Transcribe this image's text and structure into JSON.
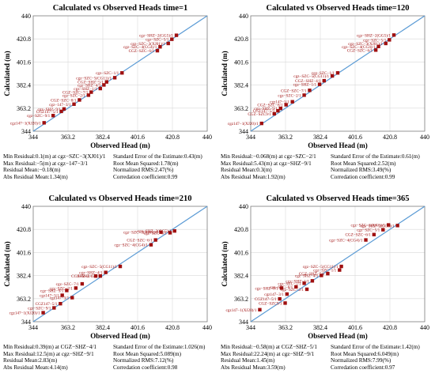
{
  "charts": [
    {
      "title": "Calculated vs Observed Heads   time=1",
      "xlabel": "Observed Head (m)",
      "ylabel": "Calculated (m)",
      "stats_left": [
        "Min Residual:0.1(m) at cgz−SZC−3(XJ01)/1",
        "Max Residual:−5(m) at cgz−147−3/1",
        "Residual Mean:−0.18(m)",
        "Abs Residual Mean:1.34(m)"
      ],
      "stats_right": [
        "Standard Error of the Estimate:0.43(m)",
        "Root Mean Squared:1.78(m)",
        "Normalized RMS:2.47(%)",
        "Corredation coefficient:0.99"
      ]
    },
    {
      "title": "Calculated vs Observed Heads   time=120",
      "xlabel": "Observed Head (m)",
      "ylabel": "Calculated (m)",
      "stats_left": [
        "Min Residual:−0.068(m) at cgz−SZC−2/1",
        "Max Residual:5.43(m) at cgz−SHZ−9/1",
        "Residual Mean:0.3(m)",
        "Abs Residual Mean:1.92(m)"
      ],
      "stats_right": [
        "Standard Error of the Estimate:0.61(m)",
        "Root Mean Squared:2.52(m)",
        "Normalized RMS:3.49(%)",
        "Corredation coefficient:0.99"
      ]
    },
    {
      "title": "Calculated vs Observed Heads   time=210",
      "xlabel": "Observed Head (m)",
      "ylabel": "Calculated (m)",
      "stats_left": [
        "Min Residual:0.39(m) at CGZ−SHZ−4/1",
        "Max Residual:12.5(m) at cgz−SHZ−9/1",
        "Residual Mean:2.83(m)",
        "Abs Residual Mean:4.14(m)"
      ],
      "stats_right": [
        "Standard Error of the Estimate:1.026(m)",
        "Root Mean Squared:5.089(m)",
        "Normalized RMS:7.12(%)",
        "Corredation coefficient:0.98"
      ]
    },
    {
      "title": "Calculated vs Observed Heads   time=365",
      "xlabel": "Observed Head (m)",
      "ylabel": "Calculated (m)",
      "stats_left": [
        "Min Residual:−0.58(m) at CGZ−SHZ−5/1",
        "Max Residual:22.24(m) at cgz−SHZ−9/1",
        "Residual Mean:1.45(m)",
        "Abs Residual Mean:3.59(m)"
      ],
      "stats_right": [
        "Standard Error of the Estimate:1.42(m)",
        "Root Mean Squared:6.049(m)",
        "Normalized RMS:7.99(%)",
        "Corredation coefficient:0.97"
      ]
    }
  ],
  "chart_data": [
    {
      "type": "scatter",
      "title": "Calculated vs Observed Heads   time=1",
      "xlabel": "Observed Head (m)",
      "ylabel": "Calculated (m)",
      "xlim": [
        344,
        440
      ],
      "ylim": [
        344,
        440
      ],
      "x_ticks": [
        344,
        363.2,
        382.4,
        401.6,
        420.8,
        440
      ],
      "y_ticks": [
        344,
        363.2,
        382.4,
        401.6,
        420.8,
        440
      ],
      "line_color": "#5b9bd5",
      "marker_color": "#a01010",
      "label_color": "#a01010",
      "grid": true,
      "reference_line": "y = x",
      "points": [
        {
          "x": 423.0,
          "y": 423.8,
          "label": "cgz−SHZ−2(GG5)/1"
        },
        {
          "x": 420.5,
          "y": 420.5,
          "label": "cgz−SZC−5/1"
        },
        {
          "x": 418.5,
          "y": 417.0,
          "label": "cgz−SZC−3(XJ01)/1"
        },
        {
          "x": 414.0,
          "y": 414.2,
          "label": "cgz−SZC−4(CG4)/1"
        },
        {
          "x": 412.5,
          "y": 411.0,
          "label": "CGZ−SZC−6/1"
        },
        {
          "x": 393.0,
          "y": 392.5,
          "label": "cgz−SZC−1/1"
        },
        {
          "x": 389.0,
          "y": 388.5,
          "label": "cgz−SZC−5(CG11)/1"
        },
        {
          "x": 384.5,
          "y": 385.0,
          "label": "CGZ−SHZ−5/1"
        },
        {
          "x": 383.0,
          "y": 382.5,
          "label": "cgz−SHZ−4/1"
        },
        {
          "x": 381.0,
          "y": 379.5,
          "label": "cgz−SHZ−1/1"
        },
        {
          "x": 376.0,
          "y": 376.5,
          "label": "CGZ−SZC−7/1"
        },
        {
          "x": 374.5,
          "y": 374.0,
          "label": "cgz−SZC−2/1"
        },
        {
          "x": 369.5,
          "y": 370.0,
          "label": "CGZ−SZC−8/1"
        },
        {
          "x": 366.5,
          "y": 366.5,
          "label": "cgz−147−3/1"
        },
        {
          "x": 361.0,
          "y": 362.5,
          "label": "cgz−SHZ−9/1"
        },
        {
          "x": 359.5,
          "y": 360.5,
          "label": "CGZ147−5/1"
        },
        {
          "x": 355.0,
          "y": 357.0,
          "label": "cgz−SZC−9/1"
        },
        {
          "x": 350.0,
          "y": 351.0,
          "label": "cgz147−1(XJ20)/1"
        }
      ]
    },
    {
      "type": "scatter",
      "title": "Calculated vs Observed Heads   time=120",
      "xlabel": "Observed Head (m)",
      "ylabel": "Calculated (m)",
      "xlim": [
        344,
        440
      ],
      "ylim": [
        344,
        440
      ],
      "x_ticks": [
        344,
        363.2,
        382.4,
        401.6,
        420.8,
        440
      ],
      "y_ticks": [
        344,
        363.2,
        382.4,
        401.6,
        420.8,
        440
      ],
      "line_color": "#5b9bd5",
      "marker_color": "#a01010",
      "label_color": "#a01010",
      "grid": true,
      "reference_line": "y = x",
      "points": [
        {
          "x": 423.0,
          "y": 424.0,
          "label": "cgz−SHZ−2(GG5)/1"
        },
        {
          "x": 420.5,
          "y": 420.0,
          "label": "cgz−SZC−5/1"
        },
        {
          "x": 418.5,
          "y": 417.0,
          "label": "cgz−SZC−3(XJ01)/1"
        },
        {
          "x": 414.5,
          "y": 414.5,
          "label": "cgz−SZC−4(CG4)/1"
        },
        {
          "x": 413.0,
          "y": 411.5,
          "label": "CGZ−SZC−6/1"
        },
        {
          "x": 392.0,
          "y": 392.5,
          "label": "cgz−SZC−1/1"
        },
        {
          "x": 389.0,
          "y": 390.0,
          "label": "cgz−SZC−5(CG11)/1"
        },
        {
          "x": 384.5,
          "y": 386.0,
          "label": "CGZ−SHZ−4/1"
        },
        {
          "x": 382.0,
          "y": 383.0,
          "label": "cgz−SHZ−1/1"
        },
        {
          "x": 376.5,
          "y": 378.0,
          "label": "CGZ−SZC−7/1"
        },
        {
          "x": 373.5,
          "y": 374.0,
          "label": "cgz−SZC−2/1"
        },
        {
          "x": 367.0,
          "y": 368.5,
          "label": "cgz147−3/1"
        },
        {
          "x": 363.5,
          "y": 366.0,
          "label": "CGZ−SZC−8/1"
        },
        {
          "x": 360.5,
          "y": 363.0,
          "label": "cgz−SHZ−9/1"
        },
        {
          "x": 359.0,
          "y": 361.0,
          "label": "CGZ147−5/1"
        },
        {
          "x": 357.0,
          "y": 358.5,
          "label": "CGZ−SZC9/1"
        },
        {
          "x": 350.0,
          "y": 350.5,
          "label": "cgz147−1(XJ20)/1"
        }
      ]
    },
    {
      "type": "scatter",
      "title": "Calculated vs Observed Heads   time=210",
      "xlabel": "Observed Head (m)",
      "ylabel": "Calculated (m)",
      "xlim": [
        344,
        440
      ],
      "ylim": [
        344,
        440
      ],
      "x_ticks": [
        344,
        363.2,
        382.4,
        401.6,
        420.8,
        440
      ],
      "y_ticks": [
        344,
        363.2,
        382.4,
        401.6,
        420.8,
        440
      ],
      "line_color": "#5b9bd5",
      "marker_color": "#a01010",
      "label_color": "#a01010",
      "grid": true,
      "reference_line": "y = x",
      "points": [
        {
          "x": 422.0,
          "y": 419.5,
          "label": "cgz−SHZ−2(GG5)/1"
        },
        {
          "x": 419.5,
          "y": 418.0,
          "label": "cgz−SZC−5/1"
        },
        {
          "x": 414.5,
          "y": 418.5,
          "label": "cgz−SZC−3(XJ01)/1"
        },
        {
          "x": 411.5,
          "y": 412.0,
          "label": "CGZ−SZC−6/1"
        },
        {
          "x": 409.0,
          "y": 408.0,
          "label": "cgz−SZC−4(CG4)/1"
        },
        {
          "x": 392.0,
          "y": 390.0,
          "label": "cgz−SZC−5(CG11)/1"
        },
        {
          "x": 384.0,
          "y": 385.0,
          "label": "cgz−SHZ−4/1"
        },
        {
          "x": 381.0,
          "y": 382.0,
          "label": "CGZ−SHZ−5/1"
        },
        {
          "x": 378.5,
          "y": 382.0,
          "label": "SHZ−1/1"
        },
        {
          "x": 371.0,
          "y": 375.5,
          "label": "cgz−SZC−7/1"
        },
        {
          "x": 367.5,
          "y": 372.0,
          "label": "cgz−SZC−2/1"
        },
        {
          "x": 362.5,
          "y": 370.0,
          "label": "cgz−SHZ−9/1"
        },
        {
          "x": 360.0,
          "y": 366.0,
          "label": "cgz147−3/1"
        },
        {
          "x": 365.5,
          "y": 364.0,
          "label": "cgz147−3/1"
        },
        {
          "x": 359.0,
          "y": 359.0,
          "label": "CGZ147−5/1"
        },
        {
          "x": 355.5,
          "y": 355.5,
          "label": "cgz−SZC−9/1"
        },
        {
          "x": 349.5,
          "y": 351.5,
          "label": "cgz147−1(XJ20)/1"
        }
      ]
    },
    {
      "type": "scatter",
      "title": "Calculated vs Observed Heads   time=365",
      "xlabel": "Observed Head (m)",
      "ylabel": "Calculated (m)",
      "xlim": [
        344,
        440
      ],
      "ylim": [
        344,
        440
      ],
      "x_ticks": [
        344,
        363.2,
        382.4,
        401.6,
        420.8,
        440
      ],
      "y_ticks": [
        344,
        363.2,
        382.4,
        401.6,
        420.8,
        440
      ],
      "line_color": "#5b9bd5",
      "marker_color": "#a01010",
      "label_color": "#a01010",
      "grid": true,
      "reference_line": "y = x",
      "points": [
        {
          "x": 425.0,
          "y": 424.0,
          "label": "cgz−SHZ−2(GG5)/1"
        },
        {
          "x": 420.0,
          "y": 424.5,
          "label": "cgz−SZC−3(XJ01)/1"
        },
        {
          "x": 417.0,
          "y": 420.5,
          "label": "cgz−SZC−5/1"
        },
        {
          "x": 412.0,
          "y": 416.5,
          "label": "CGZ−SZC−6/1"
        },
        {
          "x": 407.5,
          "y": 412.0,
          "label": "cgz−SZC−4(CG4)/1"
        },
        {
          "x": 394.0,
          "y": 390.0,
          "label": "cgz−SZC−5(CG11)/1"
        },
        {
          "x": 393.0,
          "y": 387.0,
          "label": "cgz−SZC−1/1"
        },
        {
          "x": 386.5,
          "y": 384.0,
          "label": "CGZ−SHZ−5/1"
        },
        {
          "x": 383.0,
          "y": 382.5,
          "label": "cgz−SHZ−4/1"
        },
        {
          "x": 378.0,
          "y": 378.0,
          "label": "cgz−SHZ−1/1"
        },
        {
          "x": 373.5,
          "y": 376.0,
          "label": "cgz−SZC−7/1"
        },
        {
          "x": 369.0,
          "y": 373.0,
          "label": "cgz−SZC−8/1"
        },
        {
          "x": 361.0,
          "y": 372.0,
          "label": "cgz−SHZ−9/1"
        },
        {
          "x": 375.0,
          "y": 371.0,
          "label": "cgz−SZC−2/1"
        },
        {
          "x": 364.0,
          "y": 367.0,
          "label": "cgz147−3/1"
        },
        {
          "x": 360.0,
          "y": 363.0,
          "label": "CGZ147−5/1"
        },
        {
          "x": 363.0,
          "y": 359.5,
          "label": "CGZ−SZC9/1"
        },
        {
          "x": 349.0,
          "y": 354.0,
          "label": "cgz147−1(XJ20)/1"
        }
      ]
    }
  ]
}
